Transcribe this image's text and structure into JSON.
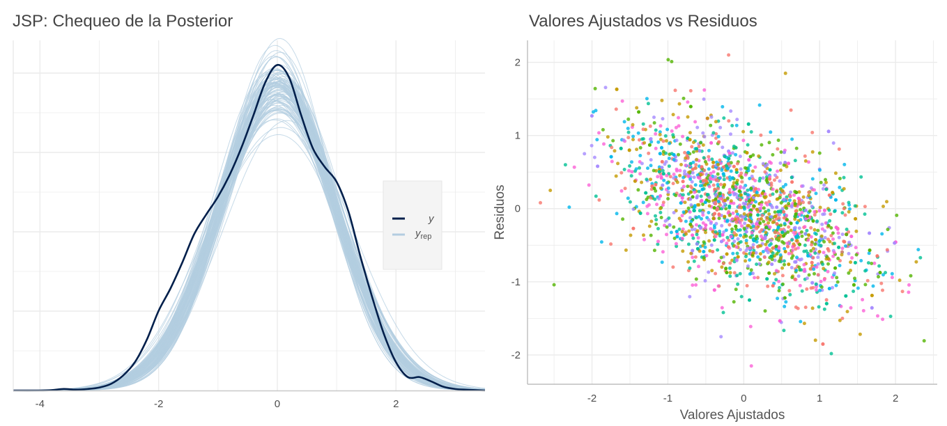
{
  "left_panel": {
    "title": "JSP: Chequeo de la Posterior",
    "legend": {
      "y_label": "y",
      "yrep_label": "y",
      "yrep_sub": "rep"
    }
  },
  "right_panel": {
    "title": "Valores Ajustados vs Residuos"
  },
  "colors": {
    "y_line": "#011f4b",
    "yrep_lines": "#b3cde0",
    "grid": "#ebebeb",
    "legend_bg": "#f4f4f4",
    "point_palette": [
      "#f8766d",
      "#c49a00",
      "#53b400",
      "#00c094",
      "#00b6eb",
      "#a58aff",
      "#fb61d7"
    ]
  },
  "chart_data": [
    {
      "type": "line",
      "title": "JSP: Chequeo de la Posterior",
      "xlabel": "",
      "ylabel": "",
      "xlim": [
        -4.45,
        3.5
      ],
      "ylim": [
        0,
        0.47
      ],
      "x_ticks": [
        -4,
        -2,
        0,
        2
      ],
      "x_tick_labels": [
        "-4",
        "-2",
        "0",
        "2"
      ],
      "grid": true,
      "legend_position": "right",
      "y_observed_density": {
        "x": [
          -4.45,
          -4.0,
          -3.8,
          -3.6,
          -3.4,
          -3.2,
          -3.0,
          -2.8,
          -2.6,
          -2.4,
          -2.2,
          -2.0,
          -1.8,
          -1.6,
          -1.4,
          -1.2,
          -1.0,
          -0.8,
          -0.6,
          -0.4,
          -0.2,
          0.0,
          0.2,
          0.4,
          0.6,
          0.8,
          1.0,
          1.2,
          1.4,
          1.6,
          1.8,
          2.0,
          2.2,
          2.4,
          2.6,
          2.8,
          3.0,
          3.2,
          3.5
        ],
        "y": [
          0.0,
          0.0,
          0.0005,
          0.002,
          0.0012,
          0.002,
          0.004,
          0.009,
          0.02,
          0.038,
          0.068,
          0.107,
          0.137,
          0.172,
          0.21,
          0.236,
          0.26,
          0.29,
          0.327,
          0.37,
          0.414,
          0.437,
          0.42,
          0.37,
          0.325,
          0.3,
          0.28,
          0.24,
          0.18,
          0.125,
          0.075,
          0.038,
          0.018,
          0.018,
          0.012,
          0.005,
          0.002,
          0.001,
          0.0
        ]
      },
      "y_rep": {
        "description_from_legend": "y_rep",
        "draws": 100,
        "band_mean_x": [
          -4.45,
          -4.0,
          -3.6,
          -3.2,
          -2.8,
          -2.4,
          -2.0,
          -1.6,
          -1.2,
          -0.8,
          -0.4,
          0.0,
          0.4,
          0.8,
          1.2,
          1.6,
          2.0,
          2.4,
          2.8,
          3.2,
          3.5
        ],
        "band_mean_y": [
          0.0,
          0.0003,
          0.0015,
          0.005,
          0.017,
          0.045,
          0.097,
          0.165,
          0.24,
          0.316,
          0.385,
          0.41,
          0.385,
          0.316,
          0.24,
          0.165,
          0.097,
          0.045,
          0.017,
          0.006,
          0.002
        ]
      }
    },
    {
      "type": "scatter",
      "title": "Valores Ajustados vs Residuos",
      "xlabel": "Valores Ajustados",
      "ylabel": "Residuos",
      "xlim": [
        -2.85,
        2.55
      ],
      "ylim": [
        -2.4,
        2.3
      ],
      "x_ticks": [
        -2,
        -1,
        0,
        1,
        2
      ],
      "x_tick_labels": [
        "-2",
        "-1",
        "0",
        "1",
        "2"
      ],
      "y_ticks": [
        -2,
        -1,
        0,
        1,
        2
      ],
      "y_tick_labels": [
        "-2",
        "-1",
        "0",
        "1",
        "2"
      ],
      "grid": true,
      "point_count": 2000,
      "distribution": {
        "x_mean": 0.0,
        "x_sd": 0.8,
        "residual_mean": 0.0,
        "residual_sd": 0.65,
        "trend_slope": -0.3,
        "note": "points form diagonal bands with negative slope, colored by group"
      },
      "example_points": {
        "x": [
          -2.68,
          -2.55,
          -2.5,
          -2.35,
          -2.3,
          -2.1,
          -1.6,
          -0.2,
          0.55,
          -0.95,
          1.6,
          2.3,
          -0.3,
          0.1,
          1.3
        ],
        "y": [
          0.08,
          0.25,
          -1.04,
          0.6,
          0.02,
          0.75,
          1.47,
          2.1,
          1.85,
          2.01,
          -0.85,
          -0.56,
          -1.75,
          -2.15,
          -1.5
        ]
      }
    }
  ]
}
